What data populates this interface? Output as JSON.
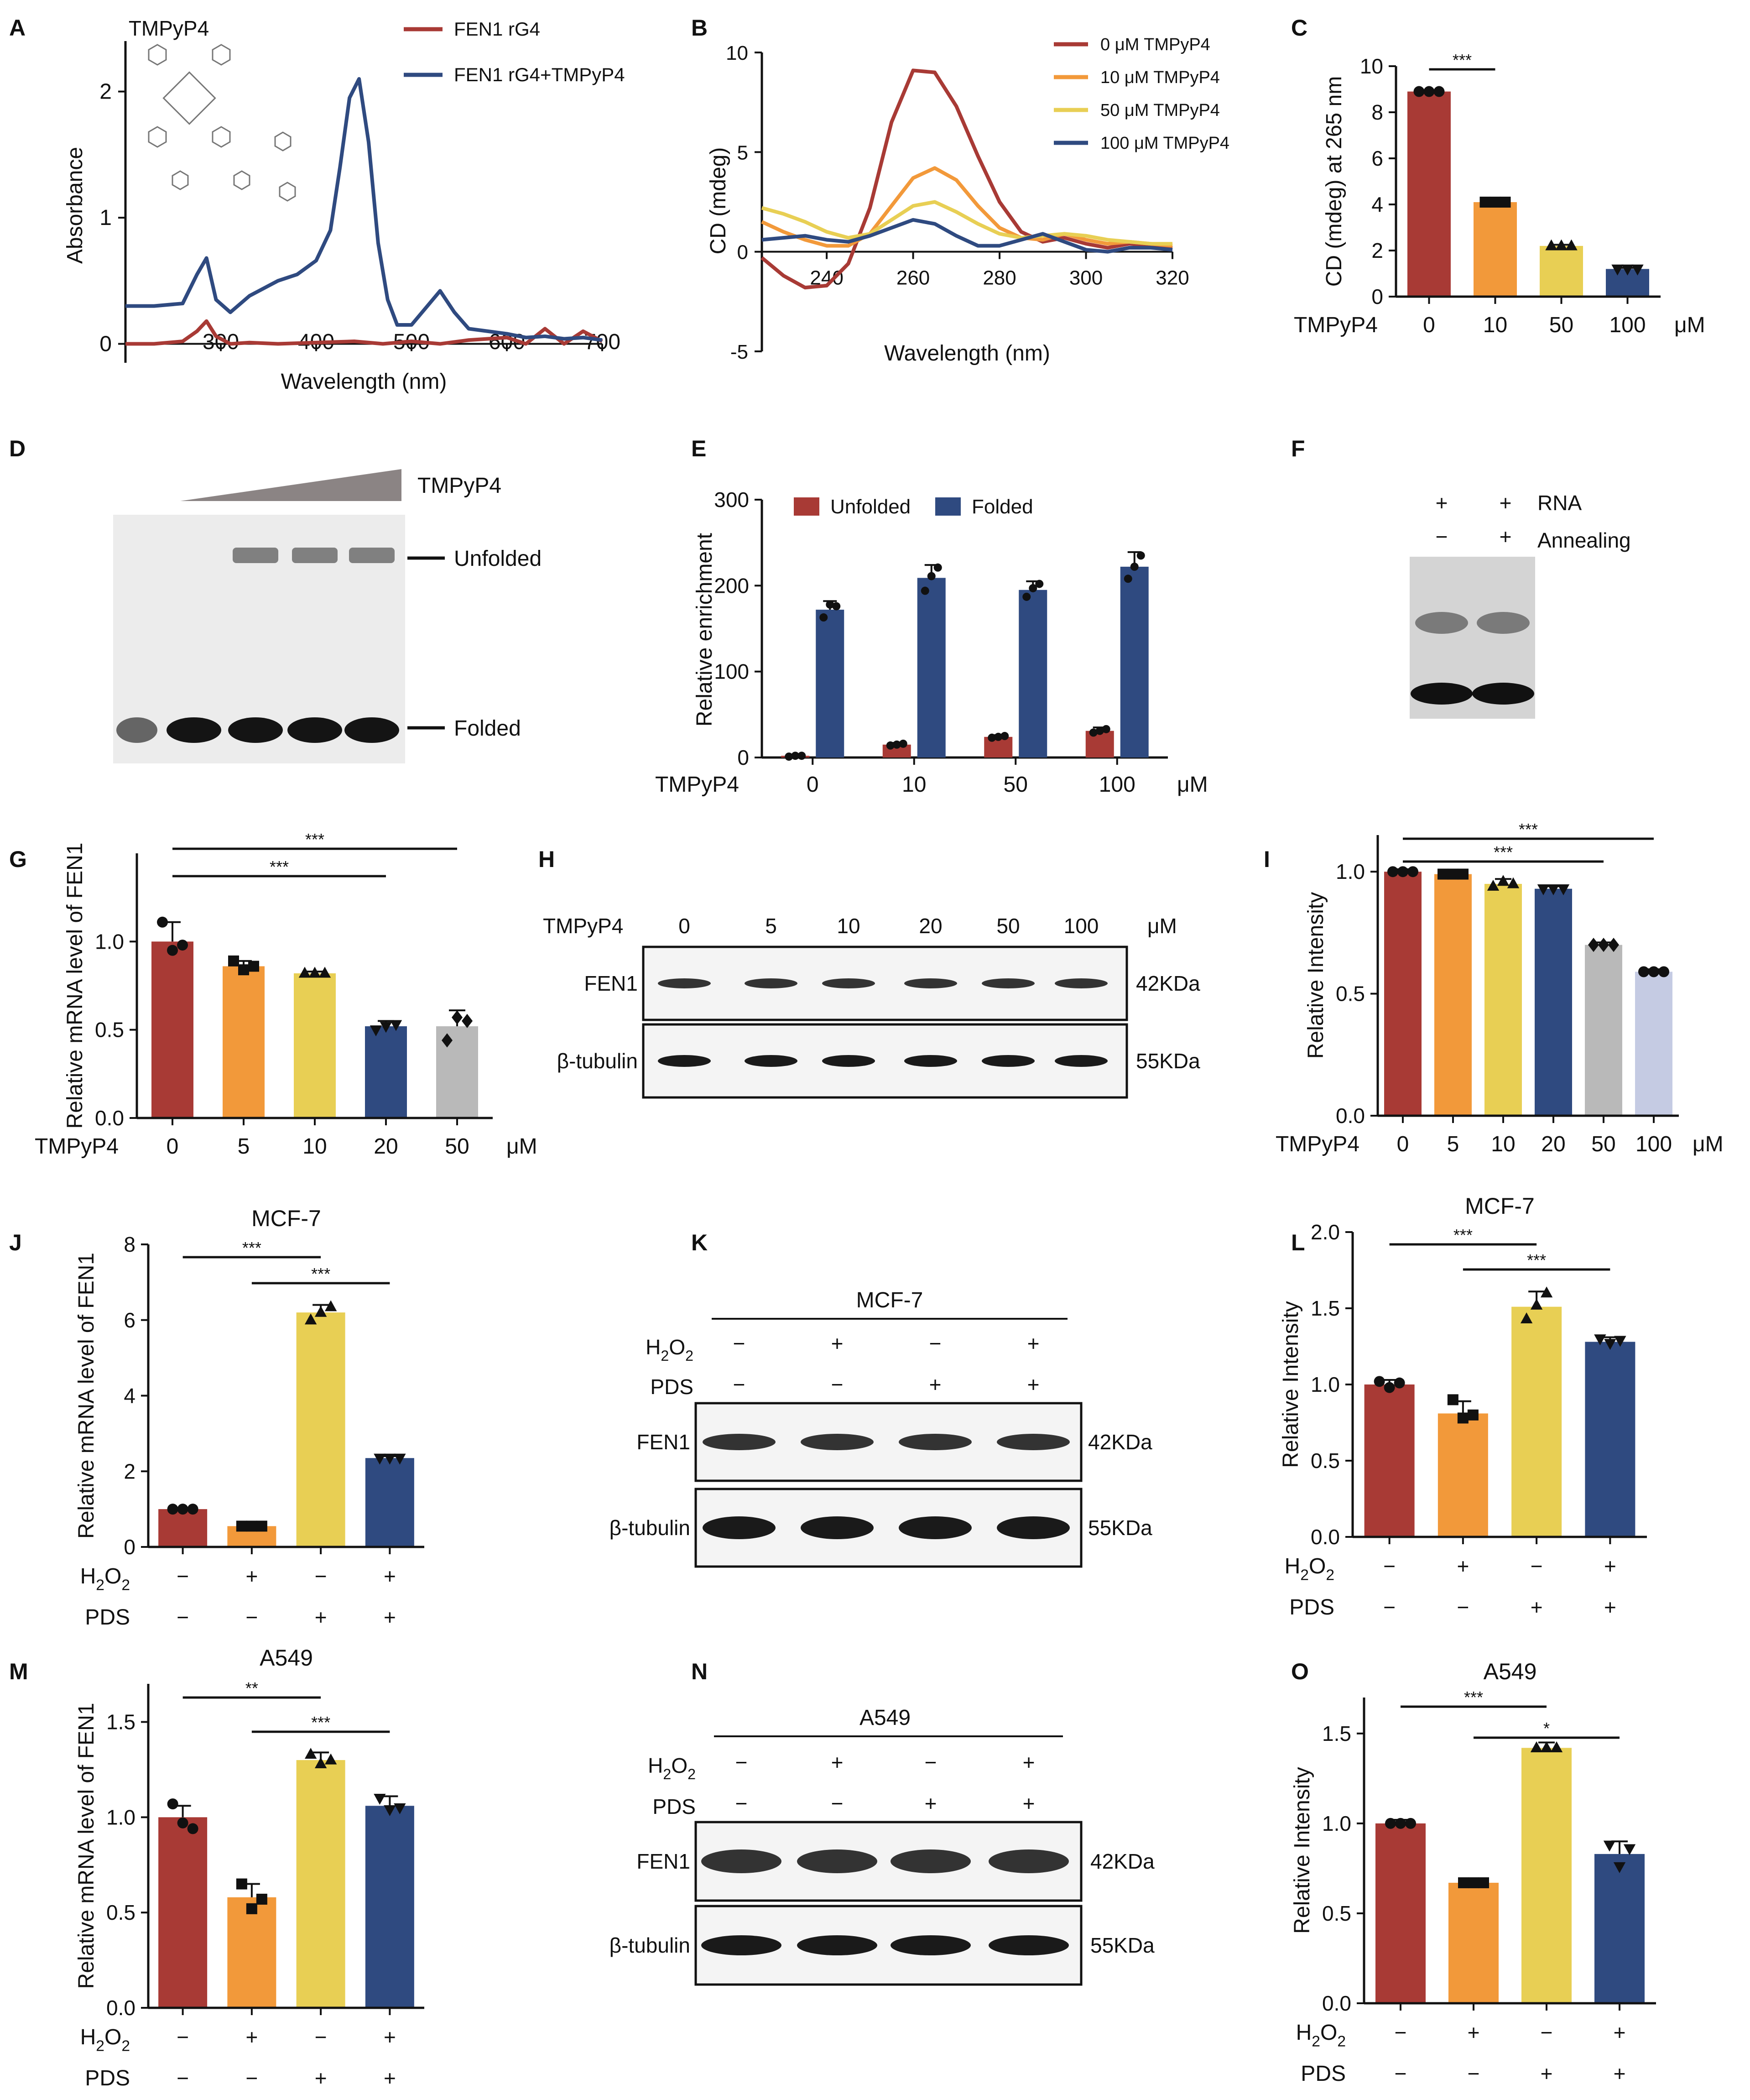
{
  "figure": {
    "panel_letters": [
      "A",
      "B",
      "C",
      "D",
      "E",
      "F",
      "G",
      "H",
      "I",
      "J",
      "K",
      "L",
      "M",
      "N",
      "O"
    ],
    "mu_unit": "μM"
  },
  "colors": {
    "c_red": "#a83a35",
    "c_orange": "#f2993a",
    "c_yellow": "#e8cf54",
    "c_navy": "#2f4a80",
    "c_gray": "#b9b9b9",
    "c_lav": "#c5cbe3"
  },
  "chart_data": [
    {
      "panel": "A",
      "type": "line",
      "inset_label": "TMPyP4",
      "xlabel": "Wavelength (nm)",
      "ylabel": "Absorbance",
      "xlim": [
        200,
        700
      ],
      "ylim": [
        -0.15,
        2.4
      ],
      "xticks": [
        300,
        400,
        500,
        600,
        700
      ],
      "yticks": [
        0,
        1,
        2
      ],
      "series": [
        {
          "name": "FEN1 rG4",
          "color": "#a83a35",
          "x": [
            200,
            230,
            260,
            275,
            285,
            295,
            310,
            330,
            360,
            400,
            440,
            470,
            500,
            530,
            560,
            600,
            620,
            640,
            660,
            680,
            700
          ],
          "y": [
            0.0,
            0.0,
            0.02,
            0.1,
            0.18,
            0.06,
            0.0,
            0.01,
            0.0,
            0.01,
            0.02,
            0.0,
            0.02,
            0.0,
            0.03,
            0.05,
            0.0,
            0.12,
            0.0,
            0.1,
            0.02
          ]
        },
        {
          "name": "FEN1 rG4+TMPyP4",
          "color": "#2f4a80",
          "x": [
            200,
            230,
            260,
            275,
            285,
            295,
            310,
            330,
            360,
            380,
            400,
            415,
            425,
            435,
            445,
            455,
            465,
            475,
            485,
            500,
            520,
            530,
            545,
            560,
            580,
            600,
            620,
            640,
            660,
            680,
            700
          ],
          "y": [
            0.3,
            0.3,
            0.32,
            0.55,
            0.68,
            0.35,
            0.25,
            0.38,
            0.5,
            0.55,
            0.66,
            0.9,
            1.4,
            1.95,
            2.1,
            1.6,
            0.8,
            0.35,
            0.15,
            0.15,
            0.33,
            0.42,
            0.25,
            0.12,
            0.1,
            0.08,
            0.05,
            0.06,
            0.04,
            0.05,
            0.03
          ]
        }
      ]
    },
    {
      "panel": "B",
      "type": "line",
      "xlabel": "Wavelength (nm)",
      "ylabel": "CD (mdeg)",
      "xlim": [
        225,
        320
      ],
      "ylim": [
        -5,
        10
      ],
      "xticks": [
        240,
        260,
        280,
        300,
        320
      ],
      "yticks": [
        -5,
        0,
        5,
        10
      ],
      "series": [
        {
          "name": "0 μM TMPyP4",
          "color": "#a83a35",
          "x": [
            225,
            230,
            235,
            240,
            245,
            250,
            255,
            260,
            265,
            270,
            275,
            280,
            285,
            290,
            295,
            300,
            305,
            310,
            315,
            320
          ],
          "y": [
            -0.3,
            -1.2,
            -1.8,
            -1.7,
            -0.6,
            2.2,
            6.5,
            9.1,
            9.0,
            7.3,
            4.8,
            2.5,
            1.0,
            0.5,
            0.7,
            0.4,
            0.2,
            0.4,
            0.3,
            0.2
          ]
        },
        {
          "name": "10 μM TMPyP4",
          "color": "#f2993a",
          "x": [
            225,
            230,
            235,
            240,
            245,
            250,
            255,
            260,
            265,
            270,
            275,
            280,
            285,
            290,
            295,
            300,
            305,
            310,
            315,
            320
          ],
          "y": [
            1.5,
            1.0,
            0.6,
            0.3,
            0.3,
            0.9,
            2.3,
            3.7,
            4.2,
            3.6,
            2.3,
            1.2,
            0.7,
            0.6,
            0.9,
            0.6,
            0.4,
            0.5,
            0.4,
            0.3
          ]
        },
        {
          "name": "50 μM TMPyP4",
          "color": "#e8cf54",
          "x": [
            225,
            230,
            235,
            240,
            245,
            250,
            255,
            260,
            265,
            270,
            275,
            280,
            285,
            290,
            295,
            300,
            305,
            310,
            315,
            320
          ],
          "y": [
            2.2,
            1.9,
            1.5,
            1.0,
            0.7,
            0.9,
            1.6,
            2.3,
            2.5,
            2.0,
            1.4,
            0.9,
            0.7,
            0.8,
            0.9,
            0.8,
            0.6,
            0.5,
            0.4,
            0.4
          ]
        },
        {
          "name": "100 μM TMPyP4",
          "color": "#2f4a80",
          "x": [
            225,
            230,
            235,
            240,
            245,
            250,
            255,
            260,
            265,
            270,
            275,
            280,
            285,
            290,
            295,
            300,
            305,
            310,
            315,
            320
          ],
          "y": [
            0.6,
            0.7,
            0.8,
            0.6,
            0.5,
            0.8,
            1.2,
            1.6,
            1.4,
            0.8,
            0.3,
            0.3,
            0.6,
            0.9,
            0.5,
            0.1,
            0.0,
            0.2,
            0.2,
            0.1
          ]
        }
      ]
    },
    {
      "panel": "C",
      "type": "bar",
      "ylabel": "CD (mdeg) at 265 nm",
      "group_label": "TMPyP4",
      "categories": [
        "0",
        "10",
        "50",
        "100"
      ],
      "values": [
        8.9,
        4.1,
        2.2,
        1.2
      ],
      "errors": [
        0.05,
        0.05,
        0.05,
        0.05
      ],
      "points": [
        [
          8.9,
          8.9,
          8.9
        ],
        [
          4.1,
          4.1,
          4.1
        ],
        [
          2.2,
          2.2,
          2.2
        ],
        [
          1.2,
          1.2,
          1.2
        ]
      ],
      "marker": [
        "circle",
        "square",
        "triangle",
        "triangle_down"
      ],
      "colors": [
        "#a83a35",
        "#f2993a",
        "#e8cf54",
        "#2f4a80"
      ],
      "ylim": [
        0,
        10
      ],
      "yticks": [
        0,
        2,
        4,
        6,
        8,
        10
      ],
      "sig": [
        {
          "from": 0,
          "to": 1,
          "label": "***"
        }
      ]
    },
    {
      "panel": "E",
      "type": "bar",
      "ylabel": "Relative enrichment",
      "group_label": "TMPyP4",
      "categories": [
        "0",
        "10",
        "50",
        "100"
      ],
      "series": [
        {
          "name": "Unfolded",
          "color": "#a83a35",
          "values": [
            2,
            15,
            24,
            31
          ],
          "errors": [
            1,
            2,
            2,
            4
          ],
          "points": [
            [
              1,
              2,
              2
            ],
            [
              14,
              15,
              16
            ],
            [
              23,
              24,
              25
            ],
            [
              29,
              31,
              33
            ]
          ]
        },
        {
          "name": "Folded",
          "color": "#2f4a80",
          "values": [
            172,
            209,
            195,
            222
          ],
          "errors": [
            10,
            15,
            10,
            17
          ],
          "points": [
            [
              163,
              178,
              176
            ],
            [
              194,
              211,
              221
            ],
            [
              187,
              197,
              202
            ],
            [
              208,
              222,
              235
            ]
          ]
        }
      ],
      "ylim": [
        0,
        300
      ],
      "yticks": [
        0,
        100,
        200,
        300
      ]
    },
    {
      "panel": "G",
      "type": "bar",
      "ylabel": "Relative mRNA level of FEN1",
      "group_label": "TMPyP4",
      "categories": [
        "0",
        "5",
        "10",
        "20",
        "50"
      ],
      "values": [
        1.0,
        0.86,
        0.82,
        0.52,
        0.52
      ],
      "errors": [
        0.11,
        0.03,
        0.01,
        0.03,
        0.09
      ],
      "points": [
        [
          1.11,
          0.95,
          0.98
        ],
        [
          0.89,
          0.84,
          0.86
        ],
        [
          0.82,
          0.82,
          0.82
        ],
        [
          0.5,
          0.52,
          0.53
        ],
        [
          0.44,
          0.57,
          0.55
        ]
      ],
      "marker": [
        "circle",
        "square",
        "triangle",
        "triangle_down",
        "diamond"
      ],
      "colors": [
        "#a83a35",
        "#f2993a",
        "#e8cf54",
        "#2f4a80",
        "#b9b9b9"
      ],
      "ylim": [
        0,
        1.5
      ],
      "yticks": [
        0.0,
        0.5,
        1.0
      ],
      "sig": [
        {
          "from": 0,
          "to": 3,
          "label": "***"
        },
        {
          "from": 0,
          "to": 4,
          "label": "***"
        }
      ]
    },
    {
      "panel": "I",
      "type": "bar",
      "ylabel": "Relative Intensity",
      "group_label": "TMPyP4",
      "categories": [
        "0",
        "5",
        "10",
        "20",
        "50",
        "100"
      ],
      "values": [
        1.0,
        0.99,
        0.95,
        0.93,
        0.7,
        0.59
      ],
      "errors": [
        0.01,
        0.01,
        0.02,
        0.01,
        0.01,
        0.01
      ],
      "points": [
        [
          1.0,
          1.0,
          1.0
        ],
        [
          0.99,
          0.99,
          0.99
        ],
        [
          0.94,
          0.96,
          0.95
        ],
        [
          0.93,
          0.93,
          0.93
        ],
        [
          0.7,
          0.7,
          0.7
        ],
        [
          0.59,
          0.59,
          0.59
        ]
      ],
      "marker": [
        "circle",
        "square",
        "triangle",
        "triangle_down",
        "diamond",
        "circle"
      ],
      "colors": [
        "#a83a35",
        "#f2993a",
        "#e8cf54",
        "#2f4a80",
        "#b9b9b9",
        "#c5cbe3"
      ],
      "ylim": [
        0,
        1.15
      ],
      "yticks": [
        0.0,
        0.5,
        1.0
      ],
      "sig": [
        {
          "from": 0,
          "to": 4,
          "label": "***"
        },
        {
          "from": 0,
          "to": 5,
          "label": "***"
        }
      ]
    },
    {
      "panel": "J",
      "type": "bar",
      "title": "MCF-7",
      "ylabel": "Relative mRNA level of FEN1",
      "categories": [
        "1",
        "2",
        "3",
        "4"
      ],
      "treatment_rows": [
        {
          "label": "H2O2",
          "signs": [
            "−",
            "+",
            "−",
            "+"
          ]
        },
        {
          "label": "PDS",
          "signs": [
            "−",
            "−",
            "+",
            "+"
          ]
        }
      ],
      "values": [
        1.0,
        0.55,
        6.2,
        2.35
      ],
      "errors": [
        0.02,
        0.03,
        0.2,
        0.05
      ],
      "points": [
        [
          1.0,
          1.0,
          1.0
        ],
        [
          0.55,
          0.55,
          0.55
        ],
        [
          6.0,
          6.2,
          6.35
        ],
        [
          2.35,
          2.35,
          2.35
        ]
      ],
      "marker": [
        "circle",
        "square",
        "triangle",
        "triangle_down"
      ],
      "colors": [
        "#a83a35",
        "#f2993a",
        "#e8cf54",
        "#2f4a80"
      ],
      "ylim": [
        0,
        8
      ],
      "yticks": [
        0,
        2,
        4,
        6,
        8
      ],
      "sig": [
        {
          "from": 0,
          "to": 2,
          "label": "***"
        },
        {
          "from": 1,
          "to": 3,
          "label": "***"
        }
      ]
    },
    {
      "panel": "L",
      "type": "bar",
      "title": "MCF-7",
      "ylabel": "Relative Intensity",
      "categories": [
        "1",
        "2",
        "3",
        "4"
      ],
      "treatment_rows": [
        {
          "label": "H2O2",
          "signs": [
            "−",
            "+",
            "−",
            "+"
          ]
        },
        {
          "label": "PDS",
          "signs": [
            "−",
            "−",
            "+",
            "+"
          ]
        }
      ],
      "values": [
        1.0,
        0.81,
        1.51,
        1.28
      ],
      "errors": [
        0.03,
        0.08,
        0.1,
        0.03
      ],
      "points": [
        [
          1.02,
          0.98,
          1.01
        ],
        [
          0.9,
          0.78,
          0.8
        ],
        [
          1.43,
          1.52,
          1.6
        ],
        [
          1.3,
          1.27,
          1.29
        ]
      ],
      "marker": [
        "circle",
        "square",
        "triangle",
        "triangle_down"
      ],
      "colors": [
        "#a83a35",
        "#f2993a",
        "#e8cf54",
        "#2f4a80"
      ],
      "ylim": [
        0,
        2.0
      ],
      "yticks": [
        0.0,
        0.5,
        1.0,
        1.5,
        2.0
      ],
      "sig": [
        {
          "from": 0,
          "to": 2,
          "label": "***"
        },
        {
          "from": 1,
          "to": 3,
          "label": "***"
        }
      ]
    },
    {
      "panel": "M",
      "type": "bar",
      "title": "A549",
      "ylabel": "Relative mRNA level of FEN1",
      "categories": [
        "1",
        "2",
        "3",
        "4"
      ],
      "treatment_rows": [
        {
          "label": "H2O2",
          "signs": [
            "−",
            "+",
            "−",
            "+"
          ]
        },
        {
          "label": "PDS",
          "signs": [
            "−",
            "−",
            "+",
            "+"
          ]
        }
      ],
      "values": [
        1.0,
        0.58,
        1.3,
        1.06
      ],
      "errors": [
        0.06,
        0.07,
        0.04,
        0.05
      ],
      "points": [
        [
          1.07,
          0.97,
          0.94
        ],
        [
          0.65,
          0.52,
          0.57
        ],
        [
          1.33,
          1.28,
          1.3
        ],
        [
          1.1,
          1.04,
          1.05
        ]
      ],
      "marker": [
        "circle",
        "square",
        "triangle",
        "triangle_down"
      ],
      "colors": [
        "#a83a35",
        "#f2993a",
        "#e8cf54",
        "#2f4a80"
      ],
      "ylim": [
        0,
        1.7
      ],
      "yticks": [
        0.0,
        0.5,
        1.0,
        1.5
      ],
      "sig": [
        {
          "from": 0,
          "to": 2,
          "label": "**"
        },
        {
          "from": 1,
          "to": 3,
          "label": "***"
        }
      ]
    },
    {
      "panel": "O",
      "type": "bar",
      "title": "A549",
      "ylabel": "Relative Intensity",
      "categories": [
        "1",
        "2",
        "3",
        "4"
      ],
      "treatment_rows": [
        {
          "label": "H2O2",
          "signs": [
            "−",
            "+",
            "−",
            "+"
          ]
        },
        {
          "label": "PDS",
          "signs": [
            "−",
            "−",
            "+",
            "+"
          ]
        }
      ],
      "values": [
        1.0,
        0.67,
        1.42,
        0.83
      ],
      "errors": [
        0.02,
        0.02,
        0.03,
        0.07
      ],
      "points": [
        [
          1.0,
          1.0,
          1.0
        ],
        [
          0.67,
          0.67,
          0.67
        ],
        [
          1.42,
          1.42,
          1.42
        ],
        [
          0.88,
          0.76,
          0.86
        ]
      ],
      "marker": [
        "circle",
        "square",
        "triangle",
        "triangle_down"
      ],
      "colors": [
        "#a83a35",
        "#f2993a",
        "#e8cf54",
        "#2f4a80"
      ],
      "ylim": [
        0,
        1.7
      ],
      "yticks": [
        0.0,
        0.5,
        1.0,
        1.5
      ],
      "sig": [
        {
          "from": 0,
          "to": 2,
          "label": "***"
        },
        {
          "from": 1,
          "to": 3,
          "label": "*"
        }
      ]
    }
  ],
  "gels": {
    "D": {
      "compound": "TMPyP4",
      "band_top": "Unfolded",
      "band_bottom": "Folded"
    },
    "F": {
      "row1_label": "RNA",
      "row1_signs": [
        "+",
        "+"
      ],
      "row2_label": "Annealing",
      "row2_signs": [
        "−",
        "+"
      ]
    },
    "H": {
      "row_label": "TMPyP4",
      "doses": [
        "0",
        "5",
        "10",
        "20",
        "50",
        "100"
      ],
      "unit": "μM",
      "blots": [
        {
          "name": "FEN1",
          "size": "42KDa"
        },
        {
          "name": "β-tubulin",
          "size": "55KDa"
        }
      ]
    },
    "K": {
      "cell": "MCF-7",
      "h2o2_signs": [
        "−",
        "+",
        "−",
        "+"
      ],
      "pds_signs": [
        "−",
        "−",
        "+",
        "+"
      ],
      "blots": [
        {
          "name": "FEN1",
          "size": "42KDa"
        },
        {
          "name": "β-tubulin",
          "size": "55KDa"
        }
      ]
    },
    "N": {
      "cell": "A549",
      "h2o2_signs": [
        "−",
        "+",
        "−",
        "+"
      ],
      "pds_signs": [
        "−",
        "−",
        "+",
        "+"
      ],
      "blots": [
        {
          "name": "FEN1",
          "size": "42KDa"
        },
        {
          "name": "β-tubulin",
          "size": "55KDa"
        }
      ]
    }
  },
  "labels": {
    "h2o2": "H2O2",
    "pds": "PDS"
  }
}
